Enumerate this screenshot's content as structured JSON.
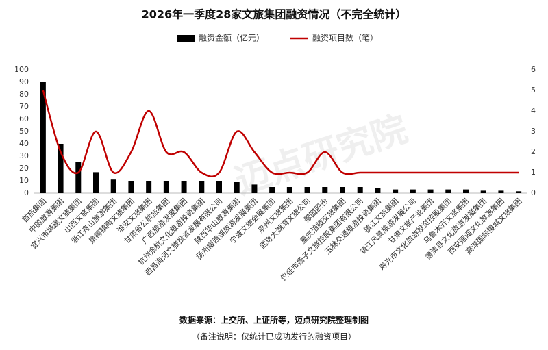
{
  "chart_data": {
    "type": "bar",
    "title": "2026年一季度28家文旅集团融资情况（不完全统计）",
    "categories": [
      "首旅集团",
      "中国旅游集团",
      "宜兴市城建文旅集团",
      "山西文旅集团",
      "浙江舟山旅游集团",
      "景德镇陶文旅集团",
      "淮安文旅集团",
      "甘肃省公航旅集团",
      "广西旅游发展集团",
      "杭州余杭文化旅游投资集团",
      "西昌海河文旅投资发展有限公司",
      "陕西华山旅游集团",
      "扬州瘦西湖旅游发展集团",
      "宁波文旅会展集团",
      "泉州文旅集团",
      "武进太湖湾文旅公司",
      "豫园股份",
      "重庆涪陵交旅集团",
      "仪征市扬子文旅控股集团有限公司",
      "玉林交通旅游投资集团",
      "镇江文旅集团",
      "镇江风景旅游发展公司",
      "甘肃文旅产业集团",
      "寿光市文化旅游投资控股集团",
      "乌鲁木齐文旅集团",
      "德清县文化旅游发展集团",
      "西安莲湖文化旅游集团",
      "高淳国际慢城文旅集团"
    ],
    "series": [
      {
        "name": "融资金额（亿元）",
        "type": "bar",
        "color": "#000000",
        "values": [
          90,
          40,
          25,
          17,
          11,
          10,
          10,
          10,
          10,
          10,
          10,
          9,
          7,
          5,
          5,
          5,
          5,
          5,
          5,
          4,
          3,
          3,
          3,
          3,
          3,
          2,
          2,
          1.5
        ]
      },
      {
        "name": "融资项目数（笔）",
        "type": "line",
        "color": "#c00000",
        "axis": "y2",
        "values": [
          5,
          2,
          1,
          3,
          1,
          2,
          4,
          2,
          2,
          1,
          1,
          3,
          2,
          1,
          1,
          1,
          2,
          1,
          1,
          1,
          1,
          1,
          1,
          1,
          1,
          1,
          1,
          1
        ]
      }
    ],
    "ylim": [
      0,
      100
    ],
    "yticks": [
      0,
      10,
      20,
      30,
      40,
      50,
      60,
      70,
      80,
      90,
      100
    ],
    "y2lim": [
      0,
      6
    ],
    "y2ticks": [
      0,
      1,
      2,
      3,
      4,
      5,
      6
    ],
    "watermark": "迈点研究院",
    "source": "数据来源：上交所、上证所等，迈点研究院整理制图",
    "note": "（备注说明：仅统计已成功发行的融资项目）"
  }
}
